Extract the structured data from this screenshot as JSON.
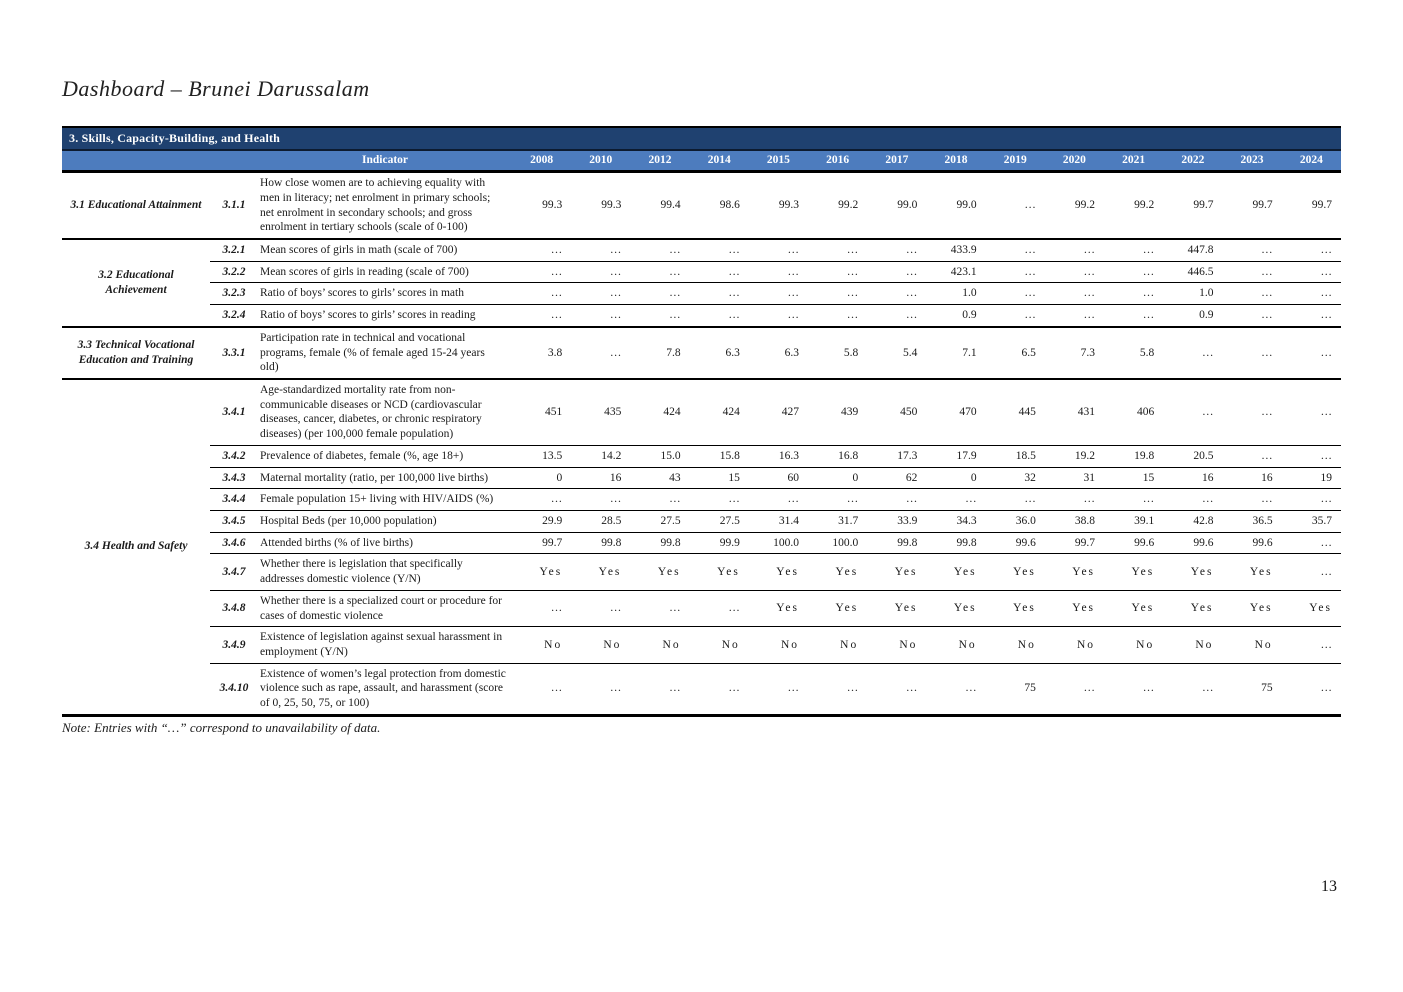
{
  "page": {
    "title": "Dashboard – Brunei Darussalam",
    "note": "Note: Entries with “…” correspond to unavailability of data.",
    "page_number": "13"
  },
  "table": {
    "section_header": "3. Skills, Capacity-Building, and Health",
    "indicator_header": "Indicator",
    "years": [
      "2008",
      "2010",
      "2012",
      "2014",
      "2015",
      "2016",
      "2017",
      "2018",
      "2019",
      "2020",
      "2021",
      "2022",
      "2023",
      "2024"
    ],
    "sections": [
      {
        "label": "3.1 Educational Attainment",
        "rows": [
          {
            "index": "3.1.1",
            "indicator": "How close women are to achieving equality with men in literacy; net enrolment in primary schools; net enrolment in secondary schools; and gross enrolment in tertiary schools (scale of 0-100)",
            "values": [
              "99.3",
              "99.3",
              "99.4",
              "98.6",
              "99.3",
              "99.2",
              "99.0",
              "99.0",
              "…",
              "99.2",
              "99.2",
              "99.7",
              "99.7",
              "99.7"
            ]
          }
        ]
      },
      {
        "label": "3.2 Educational Achievement",
        "rows": [
          {
            "index": "3.2.1",
            "indicator": "Mean scores of girls in math (scale of 700)",
            "values": [
              "…",
              "…",
              "…",
              "…",
              "…",
              "…",
              "…",
              "433.9",
              "…",
              "…",
              "…",
              "447.8",
              "…",
              "…"
            ]
          },
          {
            "index": "3.2.2",
            "indicator": "Mean scores of girls in reading (scale of 700)",
            "values": [
              "…",
              "…",
              "…",
              "…",
              "…",
              "…",
              "…",
              "423.1",
              "…",
              "…",
              "…",
              "446.5",
              "…",
              "…"
            ]
          },
          {
            "index": "3.2.3",
            "indicator": "Ratio of boys’ scores to girls’ scores in math",
            "values": [
              "…",
              "…",
              "…",
              "…",
              "…",
              "…",
              "…",
              "1.0",
              "…",
              "…",
              "…",
              "1.0",
              "…",
              "…"
            ]
          },
          {
            "index": "3.2.4",
            "indicator": "Ratio of boys’ scores to girls’ scores in reading",
            "values": [
              "…",
              "…",
              "…",
              "…",
              "…",
              "…",
              "…",
              "0.9",
              "…",
              "…",
              "…",
              "0.9",
              "…",
              "…"
            ]
          }
        ]
      },
      {
        "label": "3.3 Technical Vocational Education and Training",
        "rows": [
          {
            "index": "3.3.1",
            "indicator": "Participation rate in technical and vocational programs, female (% of female aged 15-24 years old)",
            "values": [
              "3.8",
              "…",
              "7.8",
              "6.3",
              "6.3",
              "5.8",
              "5.4",
              "7.1",
              "6.5",
              "7.3",
              "5.8",
              "…",
              "…",
              "…"
            ]
          }
        ]
      },
      {
        "label": "3.4 Health and Safety",
        "rows": [
          {
            "index": "3.4.1",
            "indicator": "Age-standardized mortality rate from non-communicable diseases or NCD (cardiovascular diseases, cancer, diabetes, or chronic respiratory diseases) (per 100,000 female population)",
            "values": [
              "451",
              "435",
              "424",
              "424",
              "427",
              "439",
              "450",
              "470",
              "445",
              "431",
              "406",
              "…",
              "…",
              "…"
            ]
          },
          {
            "index": "3.4.2",
            "indicator": "Prevalence of diabetes, female (%, age 18+)",
            "values": [
              "13.5",
              "14.2",
              "15.0",
              "15.8",
              "16.3",
              "16.8",
              "17.3",
              "17.9",
              "18.5",
              "19.2",
              "19.8",
              "20.5",
              "…",
              "…"
            ]
          },
          {
            "index": "3.4.3",
            "indicator": "Maternal mortality (ratio, per 100,000 live births)",
            "values": [
              "0",
              "16",
              "43",
              "15",
              "60",
              "0",
              "62",
              "0",
              "32",
              "31",
              "15",
              "16",
              "16",
              "19"
            ]
          },
          {
            "index": "3.4.4",
            "indicator": "Female population 15+ living with HIV/AIDS (%)",
            "values": [
              "…",
              "…",
              "…",
              "…",
              "…",
              "…",
              "…",
              "…",
              "…",
              "…",
              "…",
              "…",
              "…",
              "…"
            ]
          },
          {
            "index": "3.4.5",
            "indicator": "Hospital Beds (per 10,000 population)",
            "values": [
              "29.9",
              "28.5",
              "27.5",
              "27.5",
              "31.4",
              "31.7",
              "33.9",
              "34.3",
              "36.0",
              "38.8",
              "39.1",
              "42.8",
              "36.5",
              "35.7"
            ]
          },
          {
            "index": "3.4.6",
            "indicator": "Attended births (% of live births)",
            "values": [
              "99.7",
              "99.8",
              "99.8",
              "99.9",
              "100.0",
              "100.0",
              "99.8",
              "99.8",
              "99.6",
              "99.7",
              "99.6",
              "99.6",
              "99.6",
              "…"
            ]
          },
          {
            "index": "3.4.7",
            "indicator": "Whether there is legislation that specifically addresses domestic violence (Y/N)",
            "values": [
              "Yes",
              "Yes",
              "Yes",
              "Yes",
              "Yes",
              "Yes",
              "Yes",
              "Yes",
              "Yes",
              "Yes",
              "Yes",
              "Yes",
              "Yes",
              "…"
            ]
          },
          {
            "index": "3.4.8",
            "indicator": "Whether there is a specialized court or procedure for cases of domestic violence",
            "values": [
              "…",
              "…",
              "…",
              "…",
              "Yes",
              "Yes",
              "Yes",
              "Yes",
              "Yes",
              "Yes",
              "Yes",
              "Yes",
              "Yes",
              "Yes"
            ]
          },
          {
            "index": "3.4.9",
            "indicator": "Existence of legislation against sexual harassment in employment (Y/N)",
            "values": [
              "No",
              "No",
              "No",
              "No",
              "No",
              "No",
              "No",
              "No",
              "No",
              "No",
              "No",
              "No",
              "No",
              "…"
            ]
          },
          {
            "index": "3.4.10",
            "indicator": "Existence of women’s legal protection from domestic violence such as rape, assault, and harassment (score of 0, 25, 50, 75, or 100)",
            "values": [
              "…",
              "…",
              "…",
              "…",
              "…",
              "…",
              "…",
              "…",
              "75",
              "…",
              "…",
              "…",
              "75",
              "…"
            ]
          }
        ]
      }
    ]
  },
  "colors": {
    "header_dark_blue": "#1f4170",
    "header_light_blue": "#4d7cbe",
    "text": "#1a1a1a"
  }
}
